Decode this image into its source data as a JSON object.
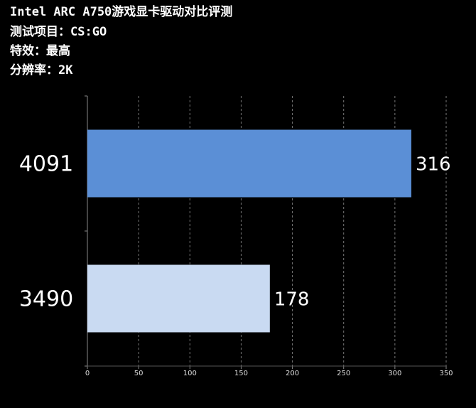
{
  "chart_data": {
    "type": "hbar",
    "title": "Intel ARC A750游戏显卡驱动对比评测",
    "subtitles": [
      "测试项目：CS:GO",
      "特效：最高",
      "分辨率：2K"
    ],
    "categories": [
      "4091",
      "3490"
    ],
    "values": [
      316,
      178
    ],
    "colors": [
      "#5b8fd6",
      "#c9daf2"
    ],
    "xlim": [
      0,
      350
    ],
    "xticks": [
      0,
      50,
      100,
      150,
      200,
      250,
      300,
      350
    ],
    "grid": true
  }
}
